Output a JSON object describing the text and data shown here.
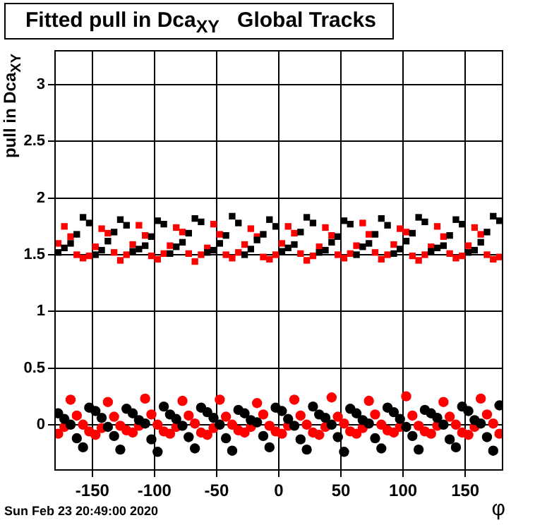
{
  "chart_data": {
    "type": "scatter",
    "title": "Fitted pull in Dca$_{XY}$   Global Tracks",
    "xlabel": "φ",
    "ylabel": "pull in Dca$_{XY}$",
    "annotations": [
      "Sun Feb 23 20:49:00 2020"
    ],
    "x": [
      -177.5,
      -172.5,
      -167.5,
      -162.5,
      -157.5,
      -152.5,
      -147.5,
      -142.5,
      -137.5,
      -132.5,
      -127.5,
      -122.5,
      -117.5,
      -112.5,
      -107.5,
      -102.5,
      -97.5,
      -92.5,
      -87.5,
      -82.5,
      -77.5,
      -72.5,
      -67.5,
      -62.5,
      -57.5,
      -52.5,
      -47.5,
      -42.5,
      -37.5,
      -32.5,
      -27.5,
      -22.5,
      -17.5,
      -12.5,
      -7.5,
      -2.5,
      2.5,
      7.5,
      12.5,
      17.5,
      22.5,
      27.5,
      32.5,
      37.5,
      42.5,
      47.5,
      52.5,
      57.5,
      62.5,
      67.5,
      72.5,
      77.5,
      82.5,
      87.5,
      92.5,
      97.5,
      102.5,
      107.5,
      112.5,
      117.5,
      122.5,
      127.5,
      132.5,
      137.5,
      142.5,
      147.5,
      152.5,
      157.5,
      162.5,
      167.5,
      172.5,
      177.5
    ],
    "xlim": [
      -180,
      180
    ],
    "xticks": [
      -150,
      -100,
      -50,
      0,
      50,
      100,
      150
    ],
    "ylim": [
      -0.4,
      3.3
    ],
    "yticks": [
      0,
      0.5,
      1,
      1.5,
      2,
      2.5,
      3
    ],
    "grid": true,
    "legend": false,
    "series": [
      {
        "color": "#000000",
        "marker": "square",
        "values": [
          1.52,
          1.56,
          1.6,
          1.68,
          1.83,
          1.78,
          1.5,
          1.54,
          1.62,
          1.7,
          1.81,
          1.76,
          1.53,
          1.55,
          1.58,
          1.66,
          1.8,
          1.77,
          1.51,
          1.57,
          1.61,
          1.69,
          1.82,
          1.79,
          1.52,
          1.54,
          1.6,
          1.67,
          1.84,
          1.78,
          1.5,
          1.55,
          1.63,
          1.68,
          1.81,
          1.75,
          1.53,
          1.56,
          1.59,
          1.7,
          1.83,
          1.78,
          1.52,
          1.54,
          1.61,
          1.66,
          1.8,
          1.77,
          1.5,
          1.57,
          1.6,
          1.68,
          1.82,
          1.76,
          1.51,
          1.55,
          1.62,
          1.69,
          1.83,
          1.79,
          1.53,
          1.56,
          1.58,
          1.67,
          1.81,
          1.77,
          1.52,
          1.54,
          1.61,
          1.7,
          1.84,
          1.8
        ]
      },
      {
        "color": "#ff0000",
        "marker": "square",
        "values": [
          1.6,
          1.75,
          1.66,
          1.5,
          1.47,
          1.49,
          1.57,
          1.73,
          1.69,
          1.52,
          1.45,
          1.5,
          1.59,
          1.76,
          1.67,
          1.49,
          1.46,
          1.51,
          1.58,
          1.74,
          1.7,
          1.51,
          1.44,
          1.5,
          1.56,
          1.77,
          1.68,
          1.5,
          1.47,
          1.52,
          1.59,
          1.73,
          1.66,
          1.48,
          1.46,
          1.5,
          1.6,
          1.75,
          1.69,
          1.51,
          1.45,
          1.49,
          1.57,
          1.74,
          1.67,
          1.5,
          1.47,
          1.51,
          1.58,
          1.78,
          1.68,
          1.52,
          1.46,
          1.5,
          1.59,
          1.73,
          1.7,
          1.49,
          1.45,
          1.5,
          1.57,
          1.75,
          1.66,
          1.51,
          1.47,
          1.49,
          1.58,
          1.74,
          1.68,
          1.5,
          1.46,
          1.48
        ]
      },
      {
        "color": "#000000",
        "marker": "circle",
        "values": [
          0.1,
          0.05,
          0.0,
          -0.12,
          -0.2,
          0.15,
          0.12,
          0.06,
          -0.02,
          -0.1,
          -0.22,
          0.14,
          0.1,
          0.04,
          0.01,
          -0.13,
          -0.24,
          0.16,
          0.09,
          0.05,
          -0.01,
          -0.11,
          -0.21,
          0.15,
          0.11,
          0.06,
          0.0,
          -0.12,
          -0.23,
          0.13,
          0.1,
          0.04,
          0.02,
          -0.1,
          -0.2,
          0.15,
          0.12,
          0.05,
          -0.01,
          -0.13,
          -0.22,
          0.16,
          0.09,
          0.06,
          0.0,
          -0.11,
          -0.24,
          0.14,
          0.1,
          0.04,
          0.01,
          -0.12,
          -0.21,
          0.15,
          0.11,
          0.05,
          -0.02,
          -0.1,
          -0.22,
          0.13,
          0.1,
          0.06,
          0.0,
          -0.13,
          -0.2,
          0.16,
          0.12,
          0.04,
          0.01,
          -0.11,
          -0.23,
          0.17
        ]
      },
      {
        "color": "#ff0000",
        "marker": "circle",
        "values": [
          -0.08,
          -0.02,
          0.22,
          0.08,
          0.0,
          -0.06,
          -0.09,
          -0.03,
          0.2,
          0.07,
          -0.01,
          -0.05,
          -0.07,
          -0.01,
          0.23,
          0.09,
          0.0,
          -0.06,
          -0.08,
          -0.02,
          0.21,
          0.08,
          0.01,
          -0.07,
          -0.09,
          -0.03,
          0.22,
          0.07,
          0.0,
          -0.05,
          -0.07,
          -0.02,
          0.19,
          0.09,
          -0.01,
          -0.06,
          -0.08,
          -0.01,
          0.22,
          0.08,
          0.0,
          -0.07,
          -0.09,
          -0.02,
          0.24,
          0.07,
          0.01,
          -0.06,
          -0.08,
          -0.03,
          0.21,
          0.09,
          0.0,
          -0.05,
          -0.07,
          -0.02,
          0.25,
          0.08,
          -0.01,
          -0.06,
          -0.08,
          -0.01,
          0.2,
          0.07,
          0.0,
          -0.07,
          -0.09,
          -0.02,
          0.23,
          0.09,
          0.01,
          -0.08
        ]
      }
    ]
  }
}
